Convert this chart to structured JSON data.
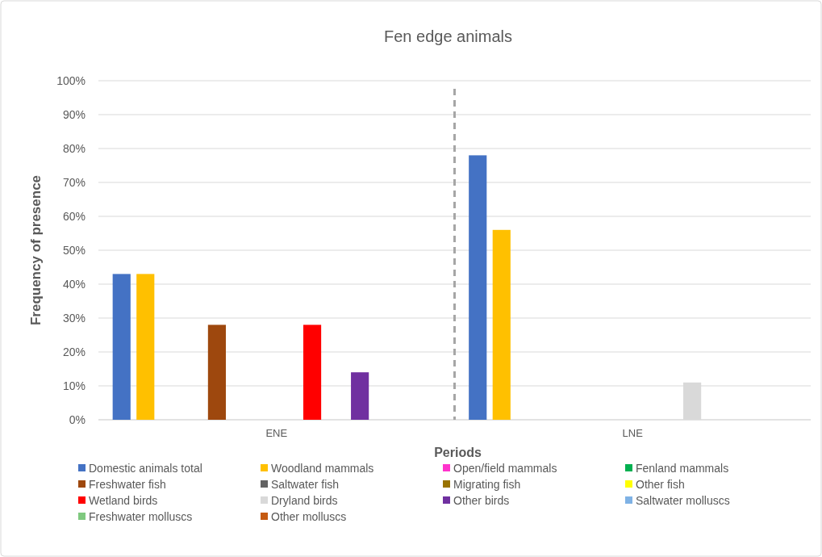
{
  "chart_data": {
    "type": "bar",
    "title": "Fen edge animals",
    "xlabel": "Periods",
    "ylabel": "Frequency of presence",
    "categories": [
      "ENE",
      "LNE"
    ],
    "series": [
      {
        "name": "Domestic animals total",
        "color": "#4472c4",
        "values": [
          43,
          78
        ]
      },
      {
        "name": "Woodland mammals",
        "color": "#ffc000",
        "values": [
          43,
          56
        ]
      },
      {
        "name": "Open/field mammals",
        "color": "#ff33cc",
        "values": [
          0,
          0
        ]
      },
      {
        "name": "Fenland mammals",
        "color": "#00b050",
        "values": [
          0,
          0
        ]
      },
      {
        "name": "Freshwater fish",
        "color": "#9e480e",
        "values": [
          28,
          0
        ]
      },
      {
        "name": "Saltwater fish",
        "color": "#636363",
        "values": [
          0,
          0
        ]
      },
      {
        "name": "Migrating fish",
        "color": "#997300",
        "values": [
          0,
          0
        ]
      },
      {
        "name": "Other fish",
        "color": "#ffff00",
        "values": [
          0,
          0
        ]
      },
      {
        "name": "Wetland birds",
        "color": "#ff0000",
        "values": [
          28,
          0
        ]
      },
      {
        "name": "Dryland birds",
        "color": "#d9d9d9",
        "values": [
          0,
          11
        ]
      },
      {
        "name": "Other birds",
        "color": "#7030a0",
        "values": [
          14,
          0
        ]
      },
      {
        "name": "Saltwater molluscs",
        "color": "#7fb2e5",
        "values": [
          0,
          0
        ]
      },
      {
        "name": "Freshwater molluscs",
        "color": "#7fc97f",
        "values": [
          0,
          0
        ]
      },
      {
        "name": "Other molluscs",
        "color": "#c55a11",
        "values": [
          0,
          0
        ]
      }
    ],
    "ylim": [
      0,
      100
    ],
    "yticks": [
      {
        "value": 0,
        "label": "0%"
      },
      {
        "value": 10,
        "label": "10%"
      },
      {
        "value": 20,
        "label": "20%"
      },
      {
        "value": 30,
        "label": "30%"
      },
      {
        "value": 40,
        "label": "40%"
      },
      {
        "value": 50,
        "label": "50%"
      },
      {
        "value": 60,
        "label": "60%"
      },
      {
        "value": 70,
        "label": "70%"
      },
      {
        "value": 80,
        "label": "80%"
      },
      {
        "value": 90,
        "label": "90%"
      },
      {
        "value": 100,
        "label": "100%"
      }
    ],
    "grid": "y",
    "legend": "bottom"
  }
}
